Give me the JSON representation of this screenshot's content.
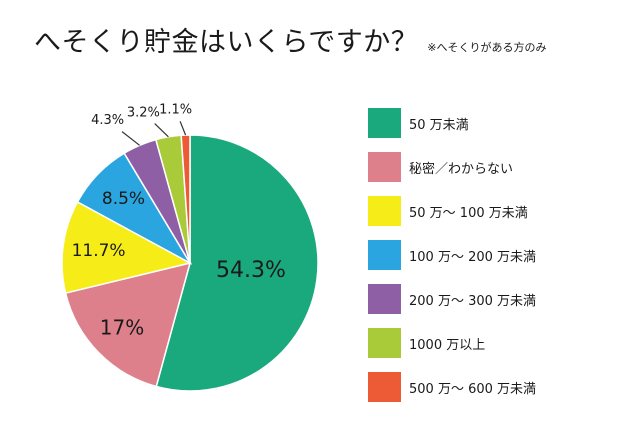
{
  "chart_data": {
    "type": "pie",
    "title": "へそくり貯金はいくらですか？",
    "subtitle": "※へそくりがある方のみ",
    "categories": [
      "50 万未満",
      "秘密／わからない",
      "50 万～ 100 万未満",
      "100 万～ 200 万未満",
      "200 万～ 300 万未満",
      "1000 万以上",
      "500 万～ 600 万未満"
    ],
    "values": [
      54.3,
      17,
      11.7,
      8.5,
      4.3,
      3.2,
      1.1
    ],
    "data_labels": [
      "54.3%",
      "17%",
      "11.7%",
      "8.5%",
      "4.3%",
      "3.2%",
      "1.1%"
    ],
    "colors": [
      "#1aa97c",
      "#dd808c",
      "#f6ec17",
      "#2aa5e0",
      "#8e5fa5",
      "#a9cb3a",
      "#ec5a36"
    ],
    "legend_position": "right"
  }
}
